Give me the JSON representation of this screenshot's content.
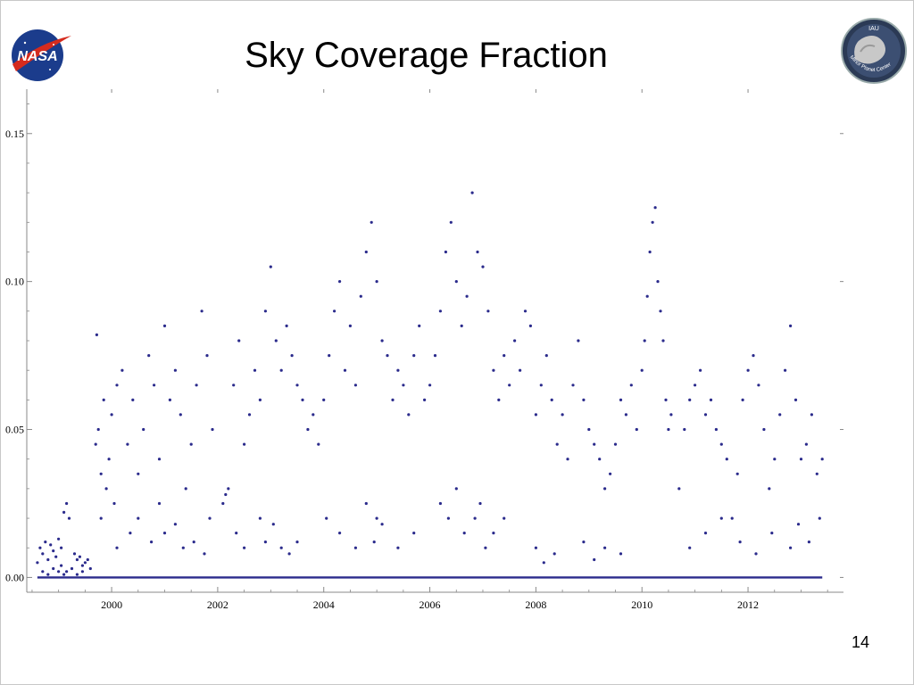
{
  "slide": {
    "title": "Sky Coverage Fraction",
    "page_number": "14",
    "logos": {
      "left": {
        "text": "NASA",
        "icon": "nasa-meatball-logo"
      },
      "right": {
        "text": "IAU Minor Planet Center",
        "icon": "minor-planet-center-logo"
      }
    }
  },
  "colors": {
    "points": "#2b2b8c",
    "axis": "#888888",
    "title": "#000000"
  },
  "chart_data": {
    "type": "scatter",
    "title": "Sky Coverage Fraction",
    "xlabel": "",
    "ylabel": "",
    "xlim": [
      1998.4,
      2013.8
    ],
    "ylim": [
      -0.005,
      0.165
    ],
    "x_ticks": [
      2000,
      2002,
      2004,
      2006,
      2008,
      2010,
      2012
    ],
    "x_tick_labels": [
      "2000",
      "2002",
      "2004",
      "2006",
      "2008",
      "2010",
      "2012"
    ],
    "y_ticks": [
      0.0,
      0.05,
      0.1,
      0.15
    ],
    "y_tick_labels": [
      "0.00",
      "0.05",
      "0.10",
      "0.15"
    ],
    "grid": false,
    "legend": "none",
    "marker": "dot",
    "series": [
      {
        "x": [
          1998.6,
          1998.65,
          1998.7,
          1998.75,
          1998.8,
          1998.85,
          1998.9,
          1998.95,
          1999.0,
          1999.05,
          1999.1,
          1999.15,
          1999.2,
          1999.3,
          1999.35,
          1999.4,
          1999.45,
          1999.5,
          1999.55,
          1999.6,
          1998.7,
          1998.8,
          1998.9,
          1999.0,
          1999.05,
          1999.1,
          1999.15,
          1999.25,
          1999.35,
          1999.45,
          1999.7,
          1999.75,
          1999.8,
          1999.85,
          1999.9,
          1999.95,
          2000.0,
          2000.05,
          2000.1,
          2000.2,
          2000.3,
          2000.4,
          2000.5,
          2000.6,
          2000.7,
          2000.8,
          2000.9,
          2001.0,
          2001.1,
          2001.2,
          2001.3,
          2001.4,
          2001.5,
          2001.6,
          2001.7,
          2001.8,
          2001.9,
          1999.72,
          1999.8,
          2000.1,
          2000.35,
          2000.5,
          2000.75,
          2000.9,
          2001.0,
          2001.2,
          2001.35,
          2001.55,
          2001.75,
          2001.85,
          2002.1,
          2002.15,
          2002.2,
          2002.3,
          2002.4,
          2002.5,
          2002.6,
          2002.7,
          2002.8,
          2002.9,
          2003.0,
          2003.1,
          2003.2,
          2003.3,
          2003.4,
          2003.5,
          2003.6,
          2003.7,
          2003.8,
          2003.9,
          2002.35,
          2002.5,
          2002.8,
          2002.9,
          2003.05,
          2003.2,
          2003.35,
          2003.5,
          2004.0,
          2004.1,
          2004.2,
          2004.3,
          2004.4,
          2004.5,
          2004.6,
          2004.7,
          2004.8,
          2004.9,
          2005.0,
          2005.1,
          2005.2,
          2005.3,
          2005.4,
          2005.5,
          2005.6,
          2005.7,
          2005.8,
          2005.9,
          2004.05,
          2004.3,
          2004.6,
          2004.8,
          2004.95,
          2005.0,
          2005.1,
          2005.4,
          2005.7,
          2006.0,
          2006.1,
          2006.2,
          2006.3,
          2006.4,
          2006.5,
          2006.6,
          2006.7,
          2006.8,
          2006.9,
          2007.0,
          2007.1,
          2007.2,
          2007.3,
          2007.4,
          2007.5,
          2007.6,
          2007.7,
          2007.8,
          2007.9,
          2006.2,
          2006.35,
          2006.5,
          2006.65,
          2006.85,
          2006.95,
          2007.05,
          2007.2,
          2007.4,
          2008.0,
          2008.1,
          2008.2,
          2008.3,
          2008.4,
          2008.5,
          2008.6,
          2008.7,
          2008.8,
          2008.9,
          2009.0,
          2009.1,
          2009.2,
          2009.3,
          2009.4,
          2009.5,
          2009.6,
          2009.7,
          2009.8,
          2009.9,
          2008.0,
          2008.15,
          2008.35,
          2008.9,
          2009.1,
          2009.3,
          2009.6,
          2010.0,
          2010.05,
          2010.1,
          2010.15,
          2010.2,
          2010.25,
          2010.3,
          2010.35,
          2010.4,
          2010.45,
          2010.5,
          2010.55,
          2010.7,
          2010.8,
          2010.9,
          2011.0,
          2011.1,
          2011.2,
          2011.3,
          2011.4,
          2011.5,
          2011.6,
          2011.7,
          2011.8,
          2011.9,
          2012.0,
          2012.1,
          2012.2,
          2012.3,
          2012.4,
          2012.5,
          2012.6,
          2012.7,
          2012.8,
          2012.9,
          2013.0,
          2013.1,
          2013.2,
          2013.3,
          2013.4,
          2010.9,
          2011.2,
          2011.5,
          2011.85,
          2012.15,
          2012.45,
          2012.8,
          2012.95,
          2013.15,
          2013.35
        ],
        "y": [
          0.005,
          0.01,
          0.008,
          0.012,
          0.006,
          0.011,
          0.009,
          0.007,
          0.013,
          0.01,
          0.022,
          0.025,
          0.02,
          0.008,
          0.006,
          0.007,
          0.004,
          0.005,
          0.006,
          0.003,
          0.002,
          0.001,
          0.003,
          0.002,
          0.004,
          0.001,
          0.002,
          0.003,
          0.001,
          0.002,
          0.045,
          0.05,
          0.035,
          0.06,
          0.03,
          0.04,
          0.055,
          0.025,
          0.065,
          0.07,
          0.045,
          0.06,
          0.035,
          0.05,
          0.075,
          0.065,
          0.04,
          0.085,
          0.06,
          0.07,
          0.055,
          0.03,
          0.045,
          0.065,
          0.09,
          0.075,
          0.05,
          0.082,
          0.02,
          0.01,
          0.015,
          0.02,
          0.012,
          0.025,
          0.015,
          0.018,
          0.01,
          0.012,
          0.008,
          0.02,
          0.025,
          0.028,
          0.03,
          0.065,
          0.08,
          0.045,
          0.055,
          0.07,
          0.06,
          0.09,
          0.105,
          0.08,
          0.07,
          0.085,
          0.075,
          0.065,
          0.06,
          0.05,
          0.055,
          0.045,
          0.015,
          0.01,
          0.02,
          0.012,
          0.018,
          0.01,
          0.008,
          0.012,
          0.06,
          0.075,
          0.09,
          0.1,
          0.07,
          0.085,
          0.065,
          0.095,
          0.11,
          0.12,
          0.1,
          0.08,
          0.075,
          0.06,
          0.07,
          0.065,
          0.055,
          0.075,
          0.085,
          0.06,
          0.02,
          0.015,
          0.01,
          0.025,
          0.012,
          0.02,
          0.018,
          0.01,
          0.015,
          0.065,
          0.075,
          0.09,
          0.11,
          0.12,
          0.1,
          0.085,
          0.095,
          0.13,
          0.11,
          0.105,
          0.09,
          0.07,
          0.06,
          0.075,
          0.065,
          0.08,
          0.07,
          0.09,
          0.085,
          0.025,
          0.02,
          0.03,
          0.015,
          0.02,
          0.025,
          0.01,
          0.015,
          0.02,
          0.055,
          0.065,
          0.075,
          0.06,
          0.045,
          0.055,
          0.04,
          0.065,
          0.08,
          0.06,
          0.05,
          0.045,
          0.04,
          0.03,
          0.035,
          0.045,
          0.06,
          0.055,
          0.065,
          0.05,
          0.01,
          0.005,
          0.008,
          0.012,
          0.006,
          0.01,
          0.008,
          0.07,
          0.08,
          0.095,
          0.11,
          0.12,
          0.125,
          0.1,
          0.09,
          0.08,
          0.06,
          0.05,
          0.055,
          0.03,
          0.05,
          0.06,
          0.065,
          0.07,
          0.055,
          0.06,
          0.05,
          0.045,
          0.04,
          0.02,
          0.035,
          0.06,
          0.07,
          0.075,
          0.065,
          0.05,
          0.03,
          0.04,
          0.055,
          0.07,
          0.085,
          0.06,
          0.04,
          0.045,
          0.055,
          0.035,
          0.04,
          0.01,
          0.015,
          0.02,
          0.012,
          0.008,
          0.015,
          0.01,
          0.018,
          0.012,
          0.02
        ]
      }
    ]
  }
}
